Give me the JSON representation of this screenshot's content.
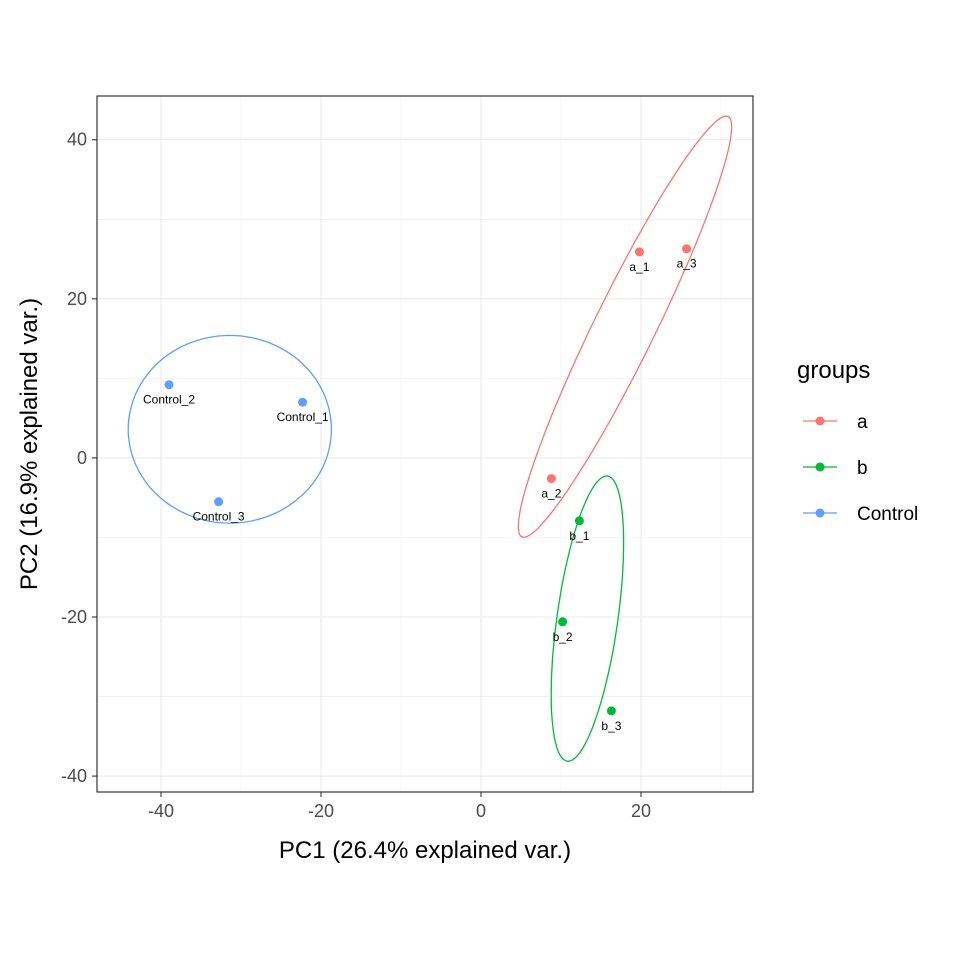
{
  "chart_data": {
    "type": "scatter",
    "xlabel": "PC1 (26.4% explained var.)",
    "ylabel": "PC2 (16.9% explained var.)",
    "xlim": [
      -48,
      34
    ],
    "ylim": [
      -42,
      45.5
    ],
    "xticks": [
      -40,
      -20,
      0,
      20
    ],
    "yticks": [
      -40,
      -20,
      0,
      20,
      40
    ],
    "grid": true,
    "legend": {
      "title": "groups",
      "position": "right"
    },
    "series": [
      {
        "name": "a",
        "color": "#F8766D",
        "points": [
          {
            "label": "a_1",
            "x": 19.8,
            "y": 25.9
          },
          {
            "label": "a_2",
            "x": 8.8,
            "y": -2.6
          },
          {
            "label": "a_3",
            "x": 25.7,
            "y": 26.3
          }
        ],
        "ellipse": {
          "cx": 18,
          "cy": 16.5,
          "a": 29.4,
          "b": 3.8,
          "angle_deg": 64
        }
      },
      {
        "name": "b",
        "color": "#00BA38",
        "points": [
          {
            "label": "b_1",
            "x": 12.3,
            "y": -7.9
          },
          {
            "label": "b_2",
            "x": 10.2,
            "y": -20.6
          },
          {
            "label": "b_3",
            "x": 16.3,
            "y": -31.8
          }
        ],
        "ellipse": {
          "cx": 13.3,
          "cy": -20.2,
          "a": 18.1,
          "b": 3.8,
          "angle_deg": 82
        }
      },
      {
        "name": "Control",
        "color": "#619CFF",
        "points": [
          {
            "label": "Control_1",
            "x": -22.3,
            "y": 7.0
          },
          {
            "label": "Control_2",
            "x": -39.0,
            "y": 9.2
          },
          {
            "label": "Control_3",
            "x": -32.8,
            "y": -5.5
          }
        ],
        "ellipse": {
          "cx": -31.4,
          "cy": 3.6,
          "a": 12.7,
          "b": 11.8,
          "angle_deg": 0
        }
      }
    ]
  }
}
